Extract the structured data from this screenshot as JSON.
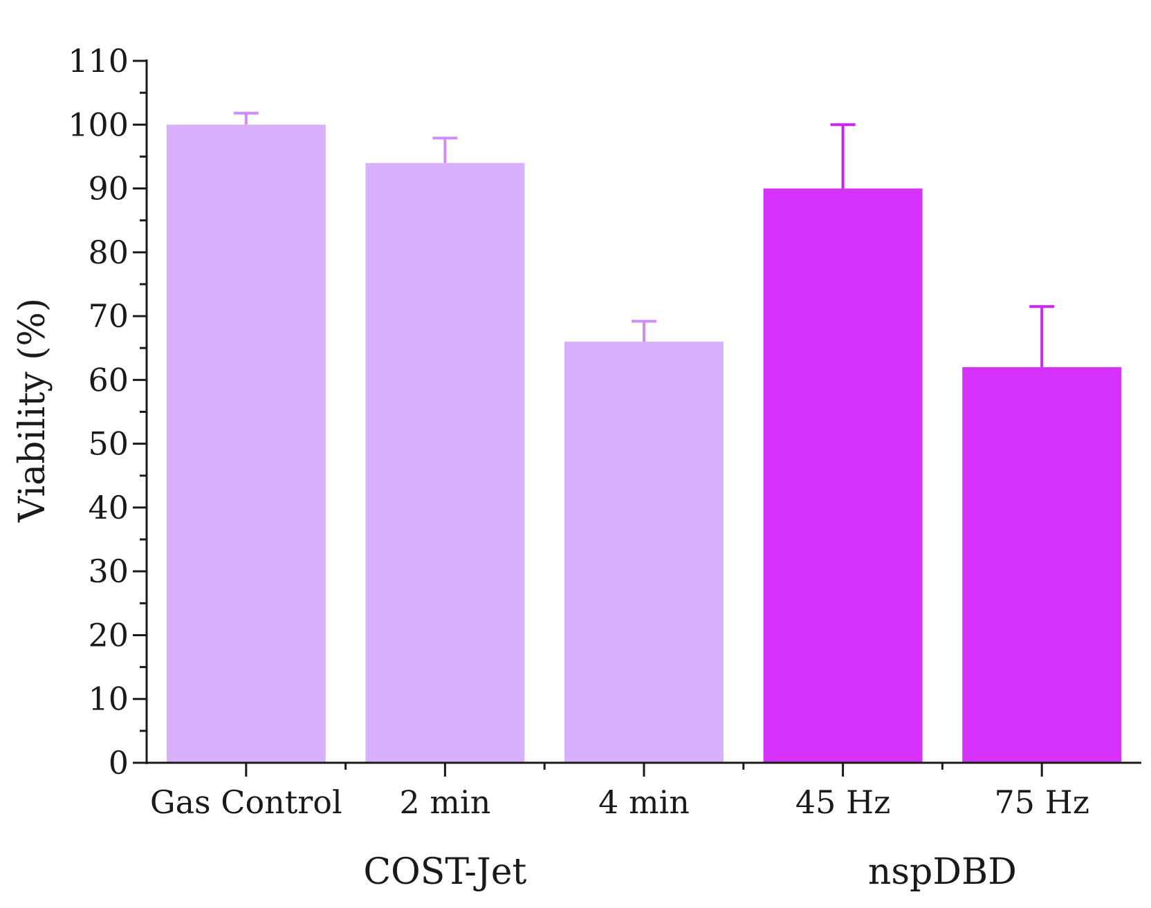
{
  "chart_data": {
    "type": "bar",
    "title": "",
    "xlabel": "",
    "ylabel": "Viability (%)",
    "ylim": [
      0,
      110
    ],
    "yticks": [
      0,
      10,
      20,
      30,
      40,
      50,
      60,
      70,
      80,
      90,
      100,
      110
    ],
    "categories": [
      "Gas Control",
      "2 min",
      "4 min",
      "45 Hz",
      "75 Hz"
    ],
    "values": [
      100,
      94,
      66,
      90,
      62
    ],
    "errors": [
      1.8,
      3.9,
      3.2,
      10,
      9.5
    ],
    "groups": [
      {
        "label": "COST-Jet",
        "categories": [
          "Gas Control",
          "2 min",
          "4 min"
        ]
      },
      {
        "label": "nspDBD",
        "categories": [
          "45 Hz",
          "75 Hz"
        ]
      }
    ],
    "colors": {
      "COST-Jet": "#d9b0fc",
      "nspDBD": "#d533fb",
      "COST-Jet-error": "#cf8cf6",
      "nspDBD-error": "#cb24f3",
      "axis": "#1a1a1a"
    },
    "grid": false,
    "legend": "none"
  }
}
